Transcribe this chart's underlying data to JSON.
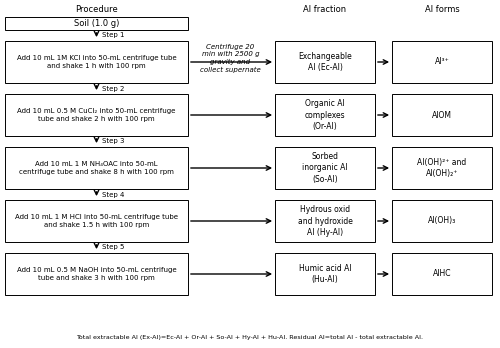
{
  "bg_color": "#ffffff",
  "title_procedure": "Procedure",
  "title_al_fraction": "Al fraction",
  "title_al_forms": "Al forms",
  "centrifuge_text": "Centrifuge 20\nmin with 2500 g\ngravity and\ncollect supernate",
  "soil_box_text": "Soil (1.0 g)",
  "steps": [
    {
      "step_label": "Step 1",
      "procedure_text": "Add 10 mL 1M KCl into 50-mL centrifuge tube\nand shake 1 h with 100 rpm",
      "fraction_text": "Exchangeable\nAl (Ec-Al)",
      "forms_text": "Al³⁺"
    },
    {
      "step_label": "Step 2",
      "procedure_text": "Add 10 mL 0.5 M CuCl₂ into 50-mL centrifuge\ntube and shake 2 h with 100 rpm",
      "fraction_text": "Organic Al\ncomplexes\n(Or-Al)",
      "forms_text": "AlOM"
    },
    {
      "step_label": "Step 3",
      "procedure_text": "Add 10 mL 1 M NH₄OAC into 50-mL\ncentrifuge tube and shake 8 h with 100 rpm",
      "fraction_text": "Sorbed\ninorganic Al\n(So-Al)",
      "forms_text": "Al(OH)²⁺ and\nAl(OH)₂⁺"
    },
    {
      "step_label": "Step 4",
      "procedure_text": "Add 10 mL 1 M HCl into 50-mL centrifuge tube\nand shake 1.5 h with 100 rpm",
      "fraction_text": "Hydrous oxid\nand hydroxide\nAl (Hy-Al)",
      "forms_text": "Al(OH)₃"
    },
    {
      "step_label": "Step 5",
      "procedure_text": "Add 10 mL 0.5 M NaOH into 50-mL centrifuge\ntube and shake 3 h with 100 rpm",
      "fraction_text": "Humic acid Al\n(Hu-Al)",
      "forms_text": "AlHC"
    }
  ],
  "footer_text": "Total extractable Al (Ex-Al)=Ec-Al + Or-Al + So-Al + Hy-Al + Hu-Al. Residual Al=total Al - total extractable Al.",
  "box_color": "#ffffff",
  "box_edge_color": "#000000",
  "text_color": "#000000",
  "arrow_color": "#000000"
}
